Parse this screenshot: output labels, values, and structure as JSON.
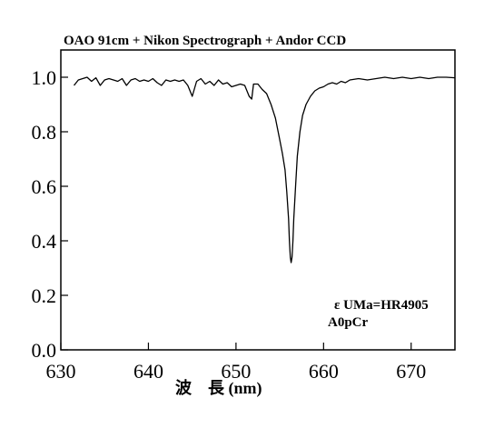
{
  "chart_data": {
    "type": "line",
    "title": "OAO 91cm + Nikon Spectrograph + Andor CCD",
    "xlabel": "波　長 (nm)",
    "ylabel": "",
    "xlim": [
      630,
      675
    ],
    "ylim": [
      0.0,
      1.1
    ],
    "xticks": [
      630,
      640,
      650,
      660,
      670
    ],
    "xtick_labels": [
      "630",
      "640",
      "650",
      "660",
      "670"
    ],
    "yticks": [
      0.0,
      0.2,
      0.4,
      0.6,
      0.8,
      1.0
    ],
    "ytick_labels": [
      "0.0",
      "0.2",
      "0.4",
      "0.6",
      "0.8",
      "1.0"
    ],
    "grid": false,
    "annotations": [
      "ε UMa=HR4905",
      "A0pCr"
    ],
    "series": [
      {
        "x": [
          631.5,
          632.0,
          632.5,
          633.0,
          633.5,
          634.0,
          634.5,
          635.0,
          635.5,
          636.0,
          636.5,
          637.0,
          637.5,
          638.0,
          638.5,
          639.0,
          639.5,
          640.0,
          640.5,
          641.0,
          641.5,
          642.0,
          642.5,
          643.0,
          643.5,
          644.0,
          644.5,
          645.0,
          645.5,
          646.0,
          646.5,
          647.0,
          647.5,
          648.0,
          648.5,
          649.0,
          649.5,
          650.0,
          650.5,
          651.0,
          651.5,
          651.8,
          652.0,
          652.5,
          653.0,
          653.5,
          654.0,
          654.5,
          655.0,
          655.3,
          655.6,
          655.8,
          656.0,
          656.1,
          656.2,
          656.3,
          656.4,
          656.5,
          656.6,
          656.8,
          657.0,
          657.3,
          657.6,
          658.0,
          658.5,
          659.0,
          659.5,
          660.0,
          660.5,
          661.0,
          661.5,
          662.0,
          662.5,
          663.0,
          664.0,
          665.0,
          666.0,
          667.0,
          668.0,
          669.0,
          670.0,
          671.0,
          672.0,
          673.0,
          674.0,
          675.0
        ],
        "y": [
          0.97,
          0.99,
          0.995,
          1.0,
          0.985,
          0.998,
          0.97,
          0.99,
          0.995,
          0.99,
          0.985,
          0.995,
          0.97,
          0.99,
          0.995,
          0.985,
          0.99,
          0.985,
          0.995,
          0.98,
          0.97,
          0.99,
          0.985,
          0.99,
          0.985,
          0.99,
          0.97,
          0.93,
          0.985,
          0.995,
          0.975,
          0.985,
          0.97,
          0.99,
          0.975,
          0.98,
          0.965,
          0.97,
          0.975,
          0.97,
          0.93,
          0.92,
          0.975,
          0.975,
          0.955,
          0.94,
          0.9,
          0.85,
          0.77,
          0.72,
          0.66,
          0.58,
          0.48,
          0.4,
          0.34,
          0.32,
          0.34,
          0.4,
          0.48,
          0.6,
          0.71,
          0.8,
          0.86,
          0.9,
          0.93,
          0.95,
          0.96,
          0.965,
          0.975,
          0.98,
          0.975,
          0.985,
          0.98,
          0.99,
          0.995,
          0.99,
          0.995,
          1.0,
          0.995,
          1.0,
          0.995,
          1.0,
          0.995,
          1.0,
          1.0,
          0.998
        ]
      }
    ]
  }
}
